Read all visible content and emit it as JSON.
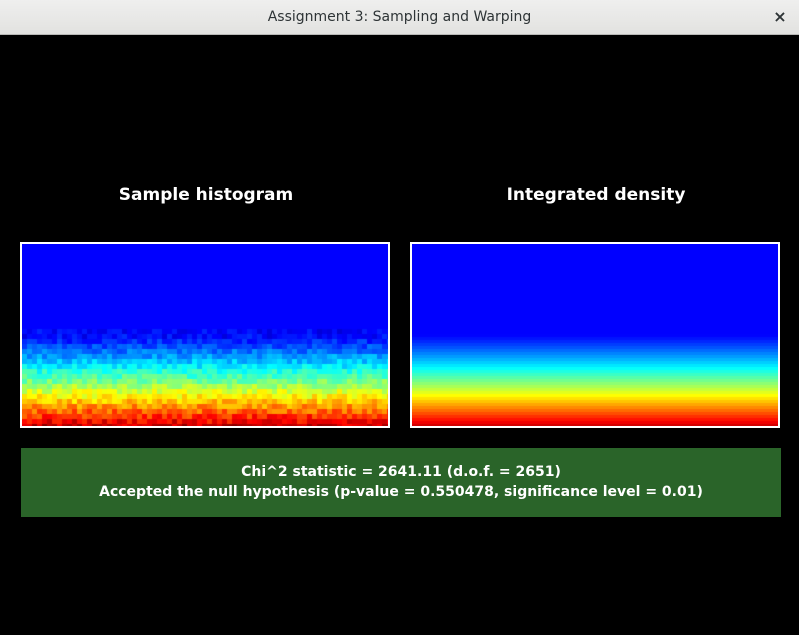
{
  "window": {
    "title": "Assignment 3: Sampling and Warping",
    "close_glyph": "×"
  },
  "histogram_panel": {
    "label": "Sample histogram"
  },
  "density_panel": {
    "label": "Integrated density"
  },
  "test_result": {
    "line1": "Chi^2 statistic = 2641.11 (d.o.f. = 2651)",
    "line2": "Accepted the null hypothesis (p-value = 0.550478, significance level = 0.01)",
    "background_color": "#2a6429"
  },
  "colormap": "jet"
}
